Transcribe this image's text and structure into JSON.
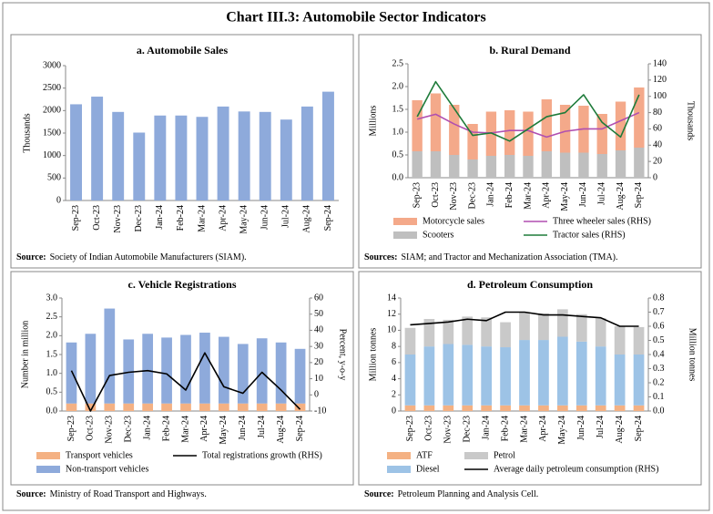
{
  "title": "Chart III.3: Automobile Sector Indicators",
  "chart_data": [
    {
      "type": "bar",
      "title": "a. Automobile Sales",
      "ylabel": "Thousands",
      "categories": [
        "Sep-23",
        "Oct-23",
        "Nov-23",
        "Dec-23",
        "Jan-24",
        "Feb-24",
        "Mar-24",
        "Apr-24",
        "May-24",
        "Jun-24",
        "Jul-24",
        "Aug-24",
        "Sep-24"
      ],
      "values": [
        2140,
        2310,
        1970,
        1510,
        1890,
        1890,
        1860,
        2090,
        1980,
        1970,
        1800,
        2090,
        2420
      ],
      "color": "#8eaadb",
      "ylim": [
        0,
        3000
      ],
      "yticks": [
        0,
        500,
        1000,
        1500,
        2000,
        2500,
        3000
      ],
      "source_label": "Source:",
      "source": "Society of Indian Automobile Manufacturers (SIAM)."
    },
    {
      "type": "combo",
      "title": "b. Rural Demand",
      "ylabel": "Millions",
      "y2label": "Thousands",
      "categories": [
        "Sep-23",
        "Oct-23",
        "Nov-23",
        "Dec-23",
        "Jan-24",
        "Feb-24",
        "Mar-24",
        "Apr-24",
        "May-24",
        "Jun-24",
        "Jul-24",
        "Aug-24",
        "Sep-24"
      ],
      "series": [
        {
          "name": "Scooters",
          "type": "bar",
          "color": "#bfbfbf",
          "values": [
            0.58,
            0.58,
            0.5,
            0.4,
            0.48,
            0.5,
            0.48,
            0.58,
            0.55,
            0.55,
            0.52,
            0.6,
            0.66
          ]
        },
        {
          "name": "Motorcycle sales",
          "type": "bar",
          "color": "#f4a98a",
          "values": [
            1.12,
            1.27,
            1.1,
            0.78,
            0.97,
            0.98,
            0.97,
            1.14,
            1.05,
            1.03,
            0.88,
            1.07,
            1.32
          ]
        },
        {
          "name": "Three wheeler sales (RHS)",
          "type": "line",
          "axis": "y2",
          "color": "#b04fb0",
          "values": [
            72,
            78,
            66,
            56,
            55,
            58,
            58,
            50,
            57,
            60,
            60,
            70,
            80
          ]
        },
        {
          "name": "Tractor sales (RHS)",
          "type": "line",
          "axis": "y2",
          "color": "#1e7b3a",
          "values": [
            75,
            118,
            85,
            52,
            55,
            45,
            60,
            75,
            80,
            102,
            68,
            50,
            102
          ]
        }
      ],
      "ylim": [
        0,
        2.5
      ],
      "yticks": [
        {
          "value": 0,
          "label": "0.0"
        },
        0.5,
        {
          "value": 1,
          "label": "1.0"
        },
        1.5,
        {
          "value": 2,
          "label": "2.0"
        },
        2.5
      ],
      "y2lim": [
        0,
        140
      ],
      "y2ticks": [
        0,
        20,
        40,
        60,
        80,
        100,
        120,
        140
      ],
      "source_label": "Sources:",
      "source": "SIAM; and Tractor and Mechanization Association (TMA)."
    },
    {
      "type": "combo",
      "title": "c. Vehicle Registrations",
      "ylabel": "Number in million",
      "y2label": "Percent, y-o-y",
      "categories": [
        "Sep-23",
        "Oct-23",
        "Nov-23",
        "Dec-23",
        "Jan-24",
        "Feb-24",
        "Mar-24",
        "Apr-24",
        "May-24",
        "Jun-24",
        "Jul-24",
        "Aug-24",
        "Sep-24"
      ],
      "series": [
        {
          "name": "Transport vehicles",
          "type": "bar",
          "color": "#f4b183",
          "values": [
            0.2,
            0.2,
            0.2,
            0.2,
            0.2,
            0.2,
            0.2,
            0.2,
            0.2,
            0.2,
            0.2,
            0.2,
            0.2
          ]
        },
        {
          "name": "Non-transport vehicles",
          "type": "bar",
          "color": "#8eaadb",
          "values": [
            1.62,
            1.85,
            2.52,
            1.7,
            1.85,
            1.75,
            1.82,
            1.88,
            1.77,
            1.58,
            1.73,
            1.62,
            1.45
          ]
        },
        {
          "name": "Total registrations growth (RHS)",
          "type": "line",
          "axis": "y2",
          "color": "#000000",
          "values": [
            15,
            -10,
            12,
            14,
            15,
            13,
            3,
            26,
            5,
            1,
            14,
            3,
            -9
          ]
        }
      ],
      "ylim": [
        0,
        3
      ],
      "yticks": [
        {
          "value": 0,
          "label": "0.0"
        },
        0.5,
        {
          "value": 1,
          "label": "1.0"
        },
        1.5,
        {
          "value": 2,
          "label": "2.0"
        },
        2.5,
        {
          "value": 3,
          "label": "3.0"
        }
      ],
      "y2lim": [
        -10,
        60
      ],
      "y2ticks": [
        -10,
        0,
        10,
        20,
        30,
        40,
        50,
        60
      ],
      "source_label": "Source:",
      "source": "Ministry of Road Transport and Highways."
    },
    {
      "type": "combo",
      "title": "d. Petroleum Consumption",
      "ylabel": "Million tonnes",
      "y2label": "Million tonnes",
      "categories": [
        "Sep-23",
        "Oct-23",
        "Nov-23",
        "Dec-23",
        "Jan-24",
        "Feb-24",
        "Mar-24",
        "Apr-24",
        "May-24",
        "Jun-24",
        "Jul-24",
        "Aug-24",
        "Sep-24"
      ],
      "series": [
        {
          "name": "ATF",
          "type": "bar",
          "color": "#f4b183",
          "values": [
            0.7,
            0.7,
            0.7,
            0.7,
            0.7,
            0.7,
            0.7,
            0.7,
            0.7,
            0.7,
            0.7,
            0.7,
            0.7
          ]
        },
        {
          "name": "Diesel",
          "type": "bar",
          "color": "#9dc3e6",
          "values": [
            6.3,
            7.3,
            7.6,
            7.5,
            7.3,
            7.2,
            8.1,
            8.1,
            8.5,
            7.9,
            7.3,
            6.3,
            6.3
          ]
        },
        {
          "name": "Petrol",
          "type": "bar",
          "color": "#c9c9c9",
          "values": [
            3.3,
            3.4,
            3.0,
            3.5,
            3.6,
            3.1,
            3.4,
            3.3,
            3.4,
            3.4,
            3.5,
            3.5,
            3.4
          ]
        },
        {
          "name": "Average daily petroleum consumption (RHS)",
          "type": "line",
          "axis": "y2",
          "color": "#000000",
          "values": [
            0.61,
            0.62,
            0.63,
            0.65,
            0.64,
            0.7,
            0.7,
            0.68,
            0.68,
            0.67,
            0.66,
            0.6,
            0.6
          ]
        }
      ],
      "ylim": [
        0,
        14
      ],
      "yticks": [
        0,
        2,
        4,
        6,
        8,
        10,
        12,
        14
      ],
      "y2lim": [
        0,
        0.8
      ],
      "y2ticks": [
        {
          "value": 0,
          "label": "0.0"
        },
        0.1,
        0.2,
        0.3,
        0.4,
        0.5,
        0.6,
        0.7,
        0.8
      ],
      "source_label": "Source:",
      "source": "Petroleum Planning and Analysis Cell."
    }
  ]
}
